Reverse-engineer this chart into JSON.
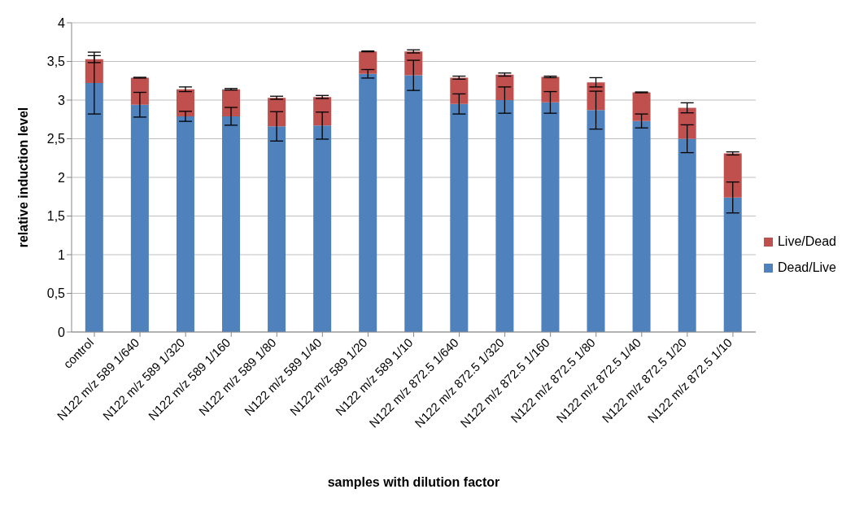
{
  "chart_data": {
    "type": "bar",
    "stacked": true,
    "xlabel": "samples with dilution factor",
    "ylabel": "relative induction level",
    "categories": [
      "control",
      "N122 m/z 589 1/640",
      "N122 m/z 589 1/320",
      "N122 m/z 589 1/160",
      "N122 m/z 589 1/80",
      "N122 m/z 589 1/40",
      "N122 m/z 589 1/20",
      "N122 m/z 589 1/10",
      "N122 m/z 872.5 1/640",
      "N122 m/z 872.5 1/320",
      "N122 m/z 872.5 1/160",
      "N122 m/z 872.5 1/80",
      "N122 m/z 872.5 1/40",
      "N122 m/z 872.5 1/20",
      "N122 m/z 872.5 1/10"
    ],
    "series": [
      {
        "name": "Dead/Live",
        "color": "#4f81bd",
        "values": [
          3.22,
          2.94,
          2.79,
          2.79,
          2.66,
          2.67,
          3.34,
          3.32,
          2.95,
          3.0,
          2.97,
          2.87,
          2.73,
          2.5,
          1.74
        ],
        "errors": [
          0.4,
          0.16,
          0.065,
          0.115,
          0.19,
          0.175,
          0.055,
          0.195,
          0.13,
          0.17,
          0.14,
          0.245,
          0.09,
          0.18,
          0.2
        ]
      },
      {
        "name": "Live/Dead",
        "color": "#c0504d",
        "values": [
          0.31,
          0.35,
          0.35,
          0.35,
          0.37,
          0.37,
          0.29,
          0.31,
          0.34,
          0.33,
          0.33,
          0.36,
          0.37,
          0.4,
          0.57
        ],
        "errors": [
          0.045,
          0.005,
          0.03,
          0.01,
          0.02,
          0.02,
          0.005,
          0.02,
          0.02,
          0.02,
          0.01,
          0.06,
          0.005,
          0.065,
          0.02
        ]
      }
    ],
    "ylim": [
      0,
      4
    ],
    "yticks": [
      0,
      {
        "value": 0.5,
        "label": "0,5"
      },
      1,
      {
        "value": 1.5,
        "label": "1,5"
      },
      2,
      {
        "value": 2.5,
        "label": "2,5"
      },
      3,
      {
        "value": 3.5,
        "label": "3,5"
      },
      4
    ],
    "grid": "y",
    "legend": "right"
  }
}
